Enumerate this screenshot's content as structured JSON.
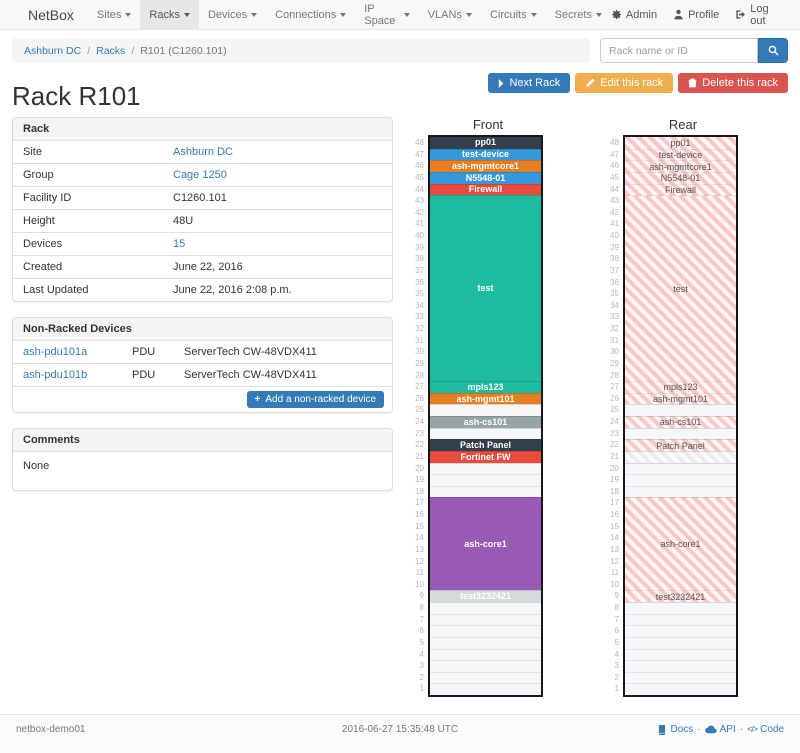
{
  "navbar": {
    "brand": "NetBox",
    "items": [
      {
        "label": "Sites",
        "active": false
      },
      {
        "label": "Racks",
        "active": true
      },
      {
        "label": "Devices",
        "active": false
      },
      {
        "label": "Connections",
        "active": false
      },
      {
        "label": "IP Space",
        "active": false
      },
      {
        "label": "VLANs",
        "active": false
      },
      {
        "label": "Circuits",
        "active": false
      },
      {
        "label": "Secrets",
        "active": false
      }
    ],
    "right": [
      {
        "label": "Admin",
        "icon": "gear"
      },
      {
        "label": "Profile",
        "icon": "person"
      },
      {
        "label": "Log out",
        "icon": "logout"
      }
    ]
  },
  "breadcrumb": {
    "items": [
      {
        "label": "Ashburn DC",
        "link": true
      },
      {
        "label": "Racks",
        "link": true
      },
      {
        "label": "R101 (C1260.101)",
        "link": false
      }
    ]
  },
  "search": {
    "placeholder": "Rack name or ID"
  },
  "page": {
    "title": "Rack R101"
  },
  "actions": {
    "next": "Next Rack",
    "edit": "Edit this rack",
    "delete": "Delete this rack"
  },
  "rack_panel": {
    "title": "Rack",
    "rows": [
      {
        "label": "Site",
        "value": "Ashburn DC",
        "link": true
      },
      {
        "label": "Group",
        "value": "Cage 1250",
        "link": true
      },
      {
        "label": "Facility ID",
        "value": "C1260.101",
        "link": false
      },
      {
        "label": "Height",
        "value": "48U",
        "link": false
      },
      {
        "label": "Devices",
        "value": "15",
        "link": true
      },
      {
        "label": "Created",
        "value": "June 22, 2016",
        "link": false
      },
      {
        "label": "Last Updated",
        "value": "June 22, 2016 2:08 p.m.",
        "link": false
      }
    ]
  },
  "non_racked": {
    "title": "Non-Racked Devices",
    "rows": [
      {
        "name": "ash-pdu101a",
        "type": "PDU",
        "model": "ServerTech CW-48VDX411"
      },
      {
        "name": "ash-pdu101b",
        "type": "PDU",
        "model": "ServerTech CW-48VDX411"
      }
    ],
    "add_label": "Add a non-racked device"
  },
  "comments": {
    "title": "Comments",
    "body": "None"
  },
  "elevations": {
    "front_title": "Front",
    "rear_title": "Rear",
    "units_total": 48,
    "colors": {
      "dark": "#333f4c",
      "blue": "#3498db",
      "orange": "#e67e22",
      "red": "#e74c3c",
      "green": "#1dbc9f",
      "gray": "#95a5a6",
      "purple": "#9b59b6",
      "lightgray": "#d7dadb",
      "rear_stripe": "#f9c7c7",
      "rear_blocked_stripe": "#ececec"
    },
    "segments": [
      {
        "span": 1,
        "label": "pp01",
        "color": "dark",
        "rear": "occupied"
      },
      {
        "span": 1,
        "label": "test-device",
        "color": "blue",
        "rear": "occupied"
      },
      {
        "span": 1,
        "label": "ash-mgmtcore1",
        "color": "orange",
        "rear": "occupied"
      },
      {
        "span": 1,
        "label": "N5548-01",
        "color": "blue",
        "rear": "occupied"
      },
      {
        "span": 1,
        "label": "Firewall",
        "color": "red",
        "rear": "occupied"
      },
      {
        "span": 16,
        "label": "test",
        "color": "green",
        "rear": "occupied"
      },
      {
        "span": 1,
        "label": "mpls123",
        "color": "green",
        "rear": "occupied"
      },
      {
        "span": 1,
        "label": "ash-mgmt101",
        "color": "orange",
        "rear": "occupied"
      },
      {
        "span": 1,
        "label": "",
        "color": null,
        "rear": "empty"
      },
      {
        "span": 1,
        "label": "ash-cs101",
        "color": "gray",
        "rear": "occupied"
      },
      {
        "span": 1,
        "label": "",
        "color": null,
        "rear": "empty"
      },
      {
        "span": 1,
        "label": "Patch Panel",
        "color": "dark",
        "rear": "occupied"
      },
      {
        "span": 1,
        "label": "Fortinet FW",
        "color": "red",
        "rear": "blocked"
      },
      {
        "span": 3,
        "label": "",
        "color": null,
        "rear": "empty"
      },
      {
        "span": 8,
        "label": "ash-core1",
        "color": "purple",
        "rear": "occupied"
      },
      {
        "span": 1,
        "label": "test3232421",
        "color": "lightgray",
        "rear": "occupied"
      },
      {
        "span": 8,
        "label": "",
        "color": null,
        "rear": "empty"
      }
    ]
  },
  "footer": {
    "hostname": "netbox-demo01",
    "timestamp": "2016-06-27 15:35:48 UTC",
    "links": [
      {
        "label": "Docs",
        "icon": "book"
      },
      {
        "label": "API",
        "icon": "cloud"
      },
      {
        "label": "Code",
        "icon": "code"
      }
    ]
  },
  "theme": {
    "accent": "#337ab7",
    "warning": "#f0ad4e",
    "danger": "#d9534f"
  }
}
